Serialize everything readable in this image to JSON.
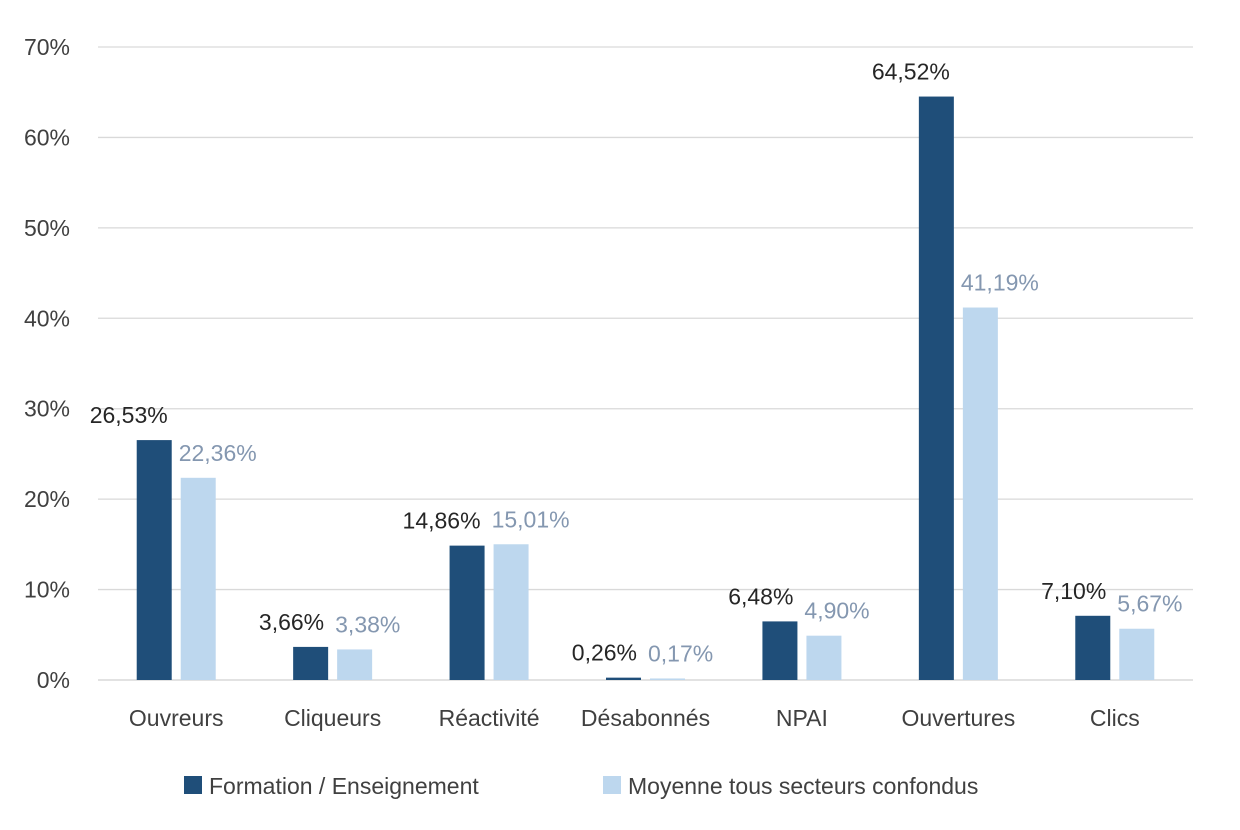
{
  "chart_data": {
    "type": "bar",
    "title": "",
    "xlabel": "",
    "ylabel": "",
    "categories": [
      "Ouvreurs",
      "Cliqueurs",
      "Réactivité",
      "Désabonnés",
      "NPAI",
      "Ouvertures",
      "Clics"
    ],
    "series": [
      {
        "name": "Formation / Enseignement",
        "values": [
          26.53,
          3.66,
          14.86,
          0.26,
          6.48,
          64.52,
          7.1
        ],
        "labels": [
          "26,53%",
          "3,66%",
          "14,86%",
          "0,26%",
          "6,48%",
          "64,52%",
          "7,10%"
        ],
        "color": "#1f4e79",
        "label_color": "#262626"
      },
      {
        "name": "Moyenne tous secteurs confondus",
        "values": [
          22.36,
          3.38,
          15.01,
          0.17,
          4.9,
          41.19,
          5.67
        ],
        "labels": [
          "22,36%",
          "3,38%",
          "15,01%",
          "0,17%",
          "4,90%",
          "41,19%",
          "5,67%"
        ],
        "color": "#bdd7ee",
        "label_color": "#8497b0"
      }
    ],
    "ylim": [
      0,
      70
    ],
    "yticks": [
      0,
      10,
      20,
      30,
      40,
      50,
      60,
      70
    ],
    "ytick_labels": [
      "0%",
      "10%",
      "20%",
      "30%",
      "40%",
      "50%",
      "60%",
      "70%"
    ],
    "grid": true,
    "legend_position": "bottom"
  }
}
